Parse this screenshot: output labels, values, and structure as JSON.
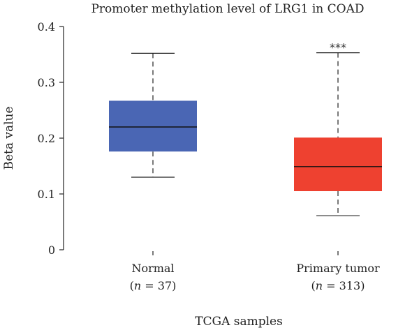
{
  "chart_data": {
    "type": "box",
    "title": "Promoter methylation level of LRG1 in COAD",
    "xlabel": "TCGA samples",
    "ylabel": "Beta value",
    "ylim": [
      0,
      0.4
    ],
    "yticks": [
      "0",
      "0.1",
      "0.2",
      "0.3",
      "0.4"
    ],
    "yticks_values": [
      0,
      0.1,
      0.2,
      0.3,
      0.4
    ],
    "grid": false,
    "categories": [
      {
        "name": "Normal",
        "n_prefix": "(",
        "n_var": "n",
        "n_text": " = 37)",
        "min": 0.13,
        "q1": 0.176,
        "median": 0.22,
        "q3": 0.267,
        "max": 0.352,
        "color": "#4a66b4",
        "annotation": ""
      },
      {
        "name": "Primary tumor",
        "n_prefix": "(",
        "n_var": "n",
        "n_text": " = 313)",
        "min": 0.061,
        "q1": 0.105,
        "median": 0.149,
        "q3": 0.201,
        "max": 0.353,
        "color": "#ee4130",
        "annotation": "***"
      }
    ]
  }
}
